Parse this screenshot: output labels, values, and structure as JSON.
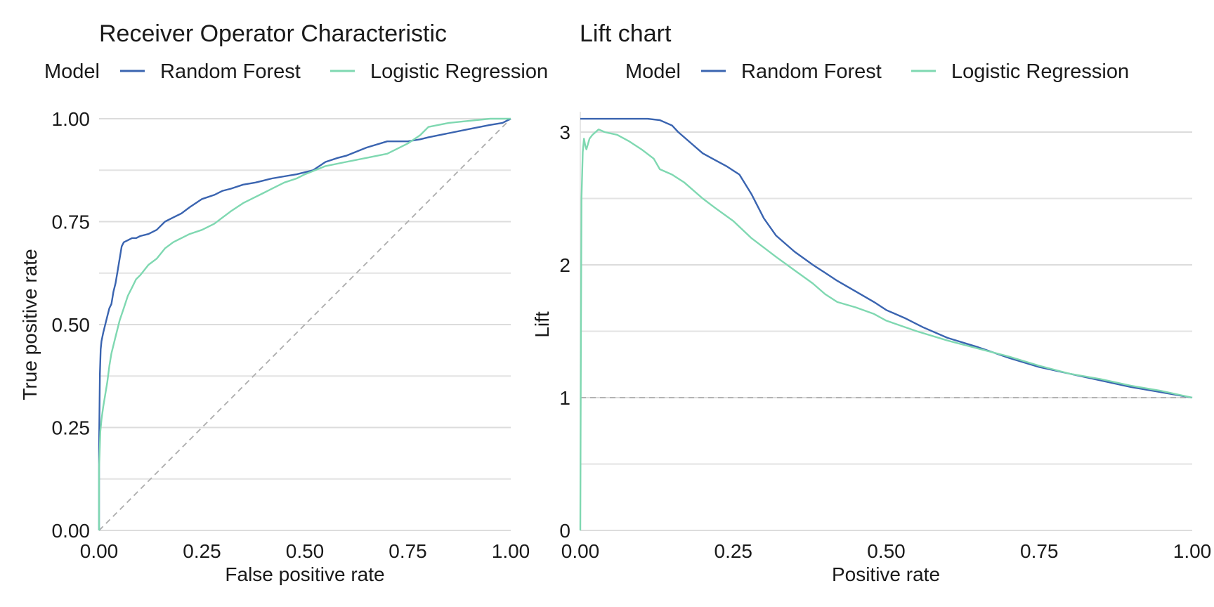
{
  "colors": {
    "random_forest": "#3a64b0",
    "logistic_regression": "#7fd8b1",
    "reference": "#b3b3b3",
    "grid": "#dcdcdc"
  },
  "chart_data": [
    {
      "type": "line",
      "title": "Receiver Operator Characteristic",
      "xlabel": "False positive rate",
      "ylabel": "True positive rate",
      "xlim": [
        0,
        1
      ],
      "ylim": [
        0,
        1
      ],
      "x_ticks": [
        "0.00",
        "0.25",
        "0.50",
        "0.75",
        "1.00"
      ],
      "y_ticks": [
        "0.00",
        "0.25",
        "0.50",
        "0.75",
        "1.00"
      ],
      "legend": {
        "title": "Model",
        "position": "top",
        "entries": [
          "Random Forest",
          "Logistic Regression"
        ]
      },
      "reference_line": {
        "x": [
          0,
          1
        ],
        "y": [
          0,
          1
        ],
        "style": "dashed"
      },
      "series": [
        {
          "name": "Random Forest",
          "color": "#3a64b0",
          "x": [
            0,
            0,
            0.002,
            0.004,
            0.006,
            0.008,
            0.01,
            0.015,
            0.02,
            0.025,
            0.03,
            0.035,
            0.04,
            0.045,
            0.05,
            0.055,
            0.06,
            0.07,
            0.08,
            0.09,
            0.1,
            0.12,
            0.14,
            0.16,
            0.18,
            0.2,
            0.22,
            0.25,
            0.28,
            0.3,
            0.32,
            0.35,
            0.38,
            0.4,
            0.42,
            0.45,
            0.48,
            0.5,
            0.52,
            0.55,
            0.58,
            0.6,
            0.65,
            0.7,
            0.72,
            0.75,
            0.78,
            0.8,
            0.85,
            0.9,
            0.95,
            0.98,
            1.0
          ],
          "y": [
            0,
            0.2,
            0.38,
            0.44,
            0.46,
            0.47,
            0.48,
            0.5,
            0.52,
            0.54,
            0.55,
            0.58,
            0.6,
            0.63,
            0.66,
            0.69,
            0.7,
            0.705,
            0.71,
            0.71,
            0.715,
            0.72,
            0.73,
            0.75,
            0.76,
            0.77,
            0.785,
            0.805,
            0.815,
            0.825,
            0.83,
            0.84,
            0.845,
            0.85,
            0.855,
            0.86,
            0.865,
            0.87,
            0.875,
            0.895,
            0.905,
            0.91,
            0.93,
            0.945,
            0.945,
            0.945,
            0.95,
            0.955,
            0.965,
            0.975,
            0.985,
            0.99,
            1.0
          ]
        },
        {
          "name": "Logistic Regression",
          "color": "#7fd8b1",
          "x": [
            0,
            0,
            0.003,
            0.006,
            0.01,
            0.015,
            0.02,
            0.025,
            0.03,
            0.035,
            0.04,
            0.05,
            0.06,
            0.07,
            0.08,
            0.09,
            0.1,
            0.12,
            0.14,
            0.16,
            0.18,
            0.2,
            0.22,
            0.25,
            0.28,
            0.3,
            0.32,
            0.35,
            0.38,
            0.4,
            0.42,
            0.45,
            0.48,
            0.5,
            0.55,
            0.6,
            0.65,
            0.7,
            0.75,
            0.78,
            0.8,
            0.85,
            0.9,
            0.95,
            1.0
          ],
          "y": [
            0,
            0.15,
            0.24,
            0.27,
            0.3,
            0.33,
            0.36,
            0.4,
            0.43,
            0.45,
            0.47,
            0.51,
            0.54,
            0.57,
            0.59,
            0.61,
            0.62,
            0.645,
            0.66,
            0.685,
            0.7,
            0.71,
            0.72,
            0.73,
            0.745,
            0.76,
            0.775,
            0.795,
            0.81,
            0.82,
            0.83,
            0.845,
            0.855,
            0.865,
            0.885,
            0.895,
            0.905,
            0.915,
            0.94,
            0.96,
            0.98,
            0.99,
            0.995,
            1.0,
            1.0
          ]
        }
      ]
    },
    {
      "type": "line",
      "title": "Lift chart",
      "xlabel": "Positive rate",
      "ylabel": "Lift",
      "xlim": [
        0,
        1
      ],
      "ylim": [
        0,
        3.1
      ],
      "x_ticks": [
        "0.00",
        "0.25",
        "0.50",
        "0.75",
        "1.00"
      ],
      "y_ticks": [
        "0",
        "1",
        "2",
        "3"
      ],
      "legend": {
        "title": "Model",
        "position": "top",
        "entries": [
          "Random Forest",
          "Logistic Regression"
        ]
      },
      "reference_line": {
        "x": [
          0,
          1
        ],
        "y": [
          1,
          1
        ],
        "style": "dashed"
      },
      "series": [
        {
          "name": "Random Forest",
          "color": "#3a64b0",
          "x": [
            0,
            0.05,
            0.1,
            0.11,
            0.13,
            0.14,
            0.15,
            0.16,
            0.18,
            0.2,
            0.22,
            0.24,
            0.26,
            0.28,
            0.3,
            0.32,
            0.35,
            0.38,
            0.4,
            0.42,
            0.45,
            0.48,
            0.5,
            0.53,
            0.56,
            0.6,
            0.65,
            0.7,
            0.75,
            0.8,
            0.85,
            0.9,
            0.95,
            1.0
          ],
          "y": [
            3.1,
            3.1,
            3.1,
            3.1,
            3.09,
            3.07,
            3.05,
            3.0,
            2.92,
            2.84,
            2.79,
            2.74,
            2.68,
            2.53,
            2.35,
            2.22,
            2.1,
            2.0,
            1.94,
            1.88,
            1.8,
            1.72,
            1.66,
            1.6,
            1.53,
            1.45,
            1.38,
            1.3,
            1.23,
            1.18,
            1.13,
            1.08,
            1.04,
            1.0
          ]
        },
        {
          "name": "Logistic Regression",
          "color": "#7fd8b1",
          "x": [
            0,
            0.001,
            0.002,
            0.004,
            0.006,
            0.008,
            0.01,
            0.015,
            0.02,
            0.03,
            0.04,
            0.05,
            0.06,
            0.08,
            0.1,
            0.12,
            0.13,
            0.15,
            0.17,
            0.2,
            0.22,
            0.25,
            0.28,
            0.3,
            0.32,
            0.35,
            0.38,
            0.4,
            0.42,
            0.45,
            0.48,
            0.5,
            0.55,
            0.6,
            0.65,
            0.7,
            0.75,
            0.8,
            0.85,
            0.9,
            0.95,
            1.0
          ],
          "y": [
            0,
            1.5,
            2.5,
            2.85,
            2.95,
            2.9,
            2.87,
            2.95,
            2.98,
            3.02,
            3.0,
            2.99,
            2.98,
            2.93,
            2.87,
            2.8,
            2.72,
            2.68,
            2.62,
            2.5,
            2.43,
            2.33,
            2.2,
            2.13,
            2.06,
            1.96,
            1.86,
            1.78,
            1.72,
            1.68,
            1.63,
            1.58,
            1.5,
            1.43,
            1.37,
            1.31,
            1.24,
            1.18,
            1.14,
            1.09,
            1.05,
            1.0
          ]
        }
      ]
    }
  ]
}
